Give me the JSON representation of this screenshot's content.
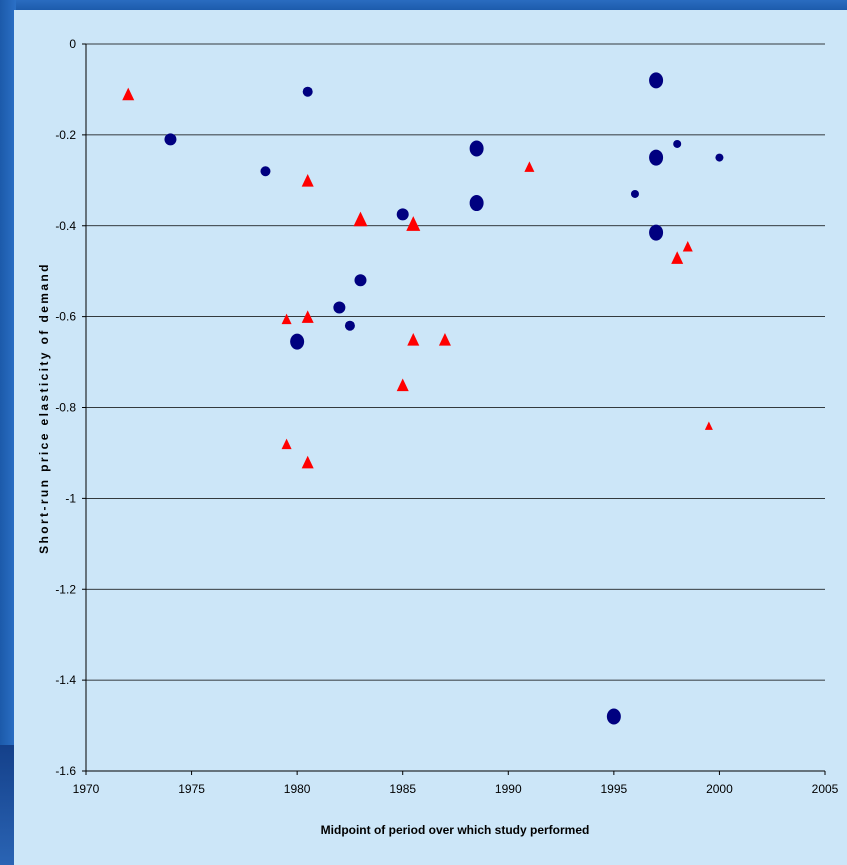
{
  "chart_data": {
    "type": "scatter",
    "title": "",
    "xlabel": "Midpoint of period over which study performed",
    "ylabel": "Short-run price elasticity of demand",
    "xlim": [
      1970,
      2005
    ],
    "ylim": [
      -1.6,
      0
    ],
    "x_ticks": [
      "1970",
      "1975",
      "1980",
      "1985",
      "1990",
      "1995",
      "2000",
      "2005"
    ],
    "y_ticks": [
      "0",
      "-0.2",
      "-0.4",
      "-0.6",
      "-0.8",
      "-1",
      "-1.2",
      "-1.4",
      "-1.6"
    ],
    "grid": "horizontal",
    "legend": "none",
    "series": [
      {
        "marker": "circle",
        "color": "#000080",
        "points": [
          {
            "x": 1974,
            "y": -0.21,
            "size": "medium"
          },
          {
            "x": 1978.5,
            "y": -0.28,
            "size": "small"
          },
          {
            "x": 1980.5,
            "y": -0.105,
            "size": "small"
          },
          {
            "x": 1980,
            "y": -0.655,
            "size": "large"
          },
          {
            "x": 1982,
            "y": -0.58,
            "size": "medium"
          },
          {
            "x": 1982.5,
            "y": -0.62,
            "size": "small"
          },
          {
            "x": 1983,
            "y": -0.52,
            "size": "medium"
          },
          {
            "x": 1985,
            "y": -0.375,
            "size": "medium"
          },
          {
            "x": 1988.5,
            "y": -0.23,
            "size": "large"
          },
          {
            "x": 1988.5,
            "y": -0.35,
            "size": "large"
          },
          {
            "x": 1995,
            "y": -1.48,
            "size": "large"
          },
          {
            "x": 1996,
            "y": -0.33,
            "size": "xsmall"
          },
          {
            "x": 1997,
            "y": -0.08,
            "size": "large"
          },
          {
            "x": 1997,
            "y": -0.25,
            "size": "large"
          },
          {
            "x": 1997,
            "y": -0.415,
            "size": "large"
          },
          {
            "x": 1998,
            "y": -0.22,
            "size": "xsmall"
          },
          {
            "x": 2000,
            "y": -0.25,
            "size": "xsmall"
          }
        ]
      },
      {
        "marker": "triangle",
        "color": "#ff0000",
        "points": [
          {
            "x": 1972,
            "y": -0.11,
            "size": "medium"
          },
          {
            "x": 1979.5,
            "y": -0.605,
            "size": "small"
          },
          {
            "x": 1979.5,
            "y": -0.88,
            "size": "small"
          },
          {
            "x": 1980.5,
            "y": -0.3,
            "size": "medium"
          },
          {
            "x": 1980.5,
            "y": -0.6,
            "size": "medium"
          },
          {
            "x": 1980.5,
            "y": -0.92,
            "size": "medium"
          },
          {
            "x": 1983,
            "y": -0.385,
            "size": "large"
          },
          {
            "x": 1985,
            "y": -0.75,
            "size": "medium"
          },
          {
            "x": 1985.5,
            "y": -0.395,
            "size": "large"
          },
          {
            "x": 1985.5,
            "y": -0.65,
            "size": "medium"
          },
          {
            "x": 1987,
            "y": -0.65,
            "size": "medium"
          },
          {
            "x": 1991,
            "y": -0.27,
            "size": "small"
          },
          {
            "x": 1998,
            "y": -0.47,
            "size": "medium"
          },
          {
            "x": 1998.5,
            "y": -0.445,
            "size": "small"
          },
          {
            "x": 1999.5,
            "y": -0.84,
            "size": "xsmall"
          }
        ]
      }
    ]
  }
}
